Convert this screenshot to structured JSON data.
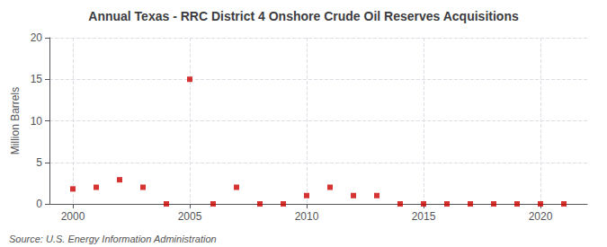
{
  "chart_data": {
    "type": "scatter",
    "title": "Annual Texas - RRC District 4 Onshore Crude Oil Reserves Acquisitions",
    "ylabel": "Million Barrels",
    "annotations": [
      "Source: U.S. Energy Information Administration"
    ],
    "x": [
      2000,
      2001,
      2002,
      2003,
      2004,
      2005,
      2006,
      2007,
      2008,
      2009,
      2010,
      2011,
      2012,
      2013,
      2014,
      2015,
      2016,
      2017,
      2018,
      2019,
      2020,
      2021
    ],
    "values": [
      1.8,
      2.0,
      2.9,
      2.0,
      0.0,
      15.0,
      0.0,
      2.0,
      0.0,
      0.0,
      1.0,
      2.0,
      1.0,
      1.0,
      0.0,
      0.0,
      0.0,
      0.0,
      0.0,
      0.0,
      0.0,
      0.0
    ],
    "color": "#cc0000",
    "marker": "square",
    "xlim": [
      1999,
      2022
    ],
    "xticks": [
      2000,
      2005,
      2010,
      2015,
      2020
    ],
    "ylim": [
      0,
      20
    ],
    "yticks": [
      0,
      5,
      10,
      15,
      20
    ],
    "grid": true
  }
}
